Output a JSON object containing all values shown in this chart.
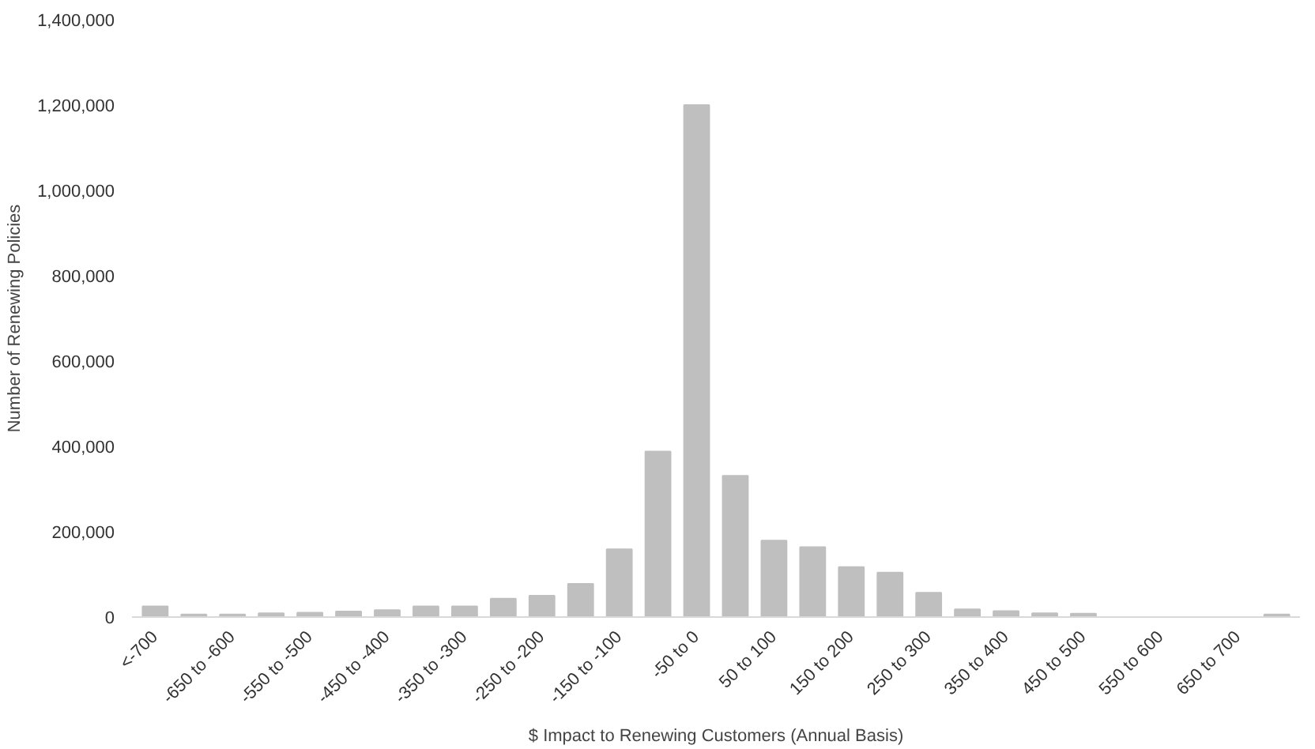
{
  "chart_data": {
    "type": "bar",
    "xlabel": "$ Impact to Renewing Customers (Annual Basis)",
    "ylabel": "Number of Renewing Policies",
    "categories": [
      "<-700",
      null,
      "-650 to -600",
      null,
      "-550 to -500",
      null,
      "-450 to -400",
      null,
      "-350 to -300",
      null,
      "-250 to -200",
      null,
      "-150 to -100",
      null,
      "-50 to 0",
      null,
      "50 to 100",
      null,
      "150 to 200",
      null,
      "250 to 300",
      null,
      "350 to 400",
      null,
      "450 to 500",
      null,
      "550 to 600",
      null,
      "650 to 700",
      null
    ],
    "values": [
      25000,
      6000,
      6000,
      9000,
      10000,
      13000,
      16000,
      25000,
      25000,
      43000,
      50000,
      78000,
      159000,
      388000,
      1200000,
      331000,
      179000,
      164000,
      117000,
      104000,
      57000,
      18000,
      14000,
      9000,
      8000,
      null,
      null,
      null,
      null,
      6000
    ],
    "color": "#bfbfbf",
    "ylim": [
      0,
      1400000
    ],
    "yticks": [
      0,
      {
        "value": 200000,
        "label": "200,000"
      },
      {
        "value": 400000,
        "label": "400,000"
      },
      {
        "value": 600000,
        "label": "600,000"
      },
      {
        "value": 800000,
        "label": "800,000"
      },
      {
        "value": 1000000,
        "label": "1,000,000"
      },
      {
        "value": 1200000,
        "label": "1,200,000"
      },
      {
        "value": 1400000,
        "label": "1,400,000"
      }
    ],
    "grid": false
  }
}
